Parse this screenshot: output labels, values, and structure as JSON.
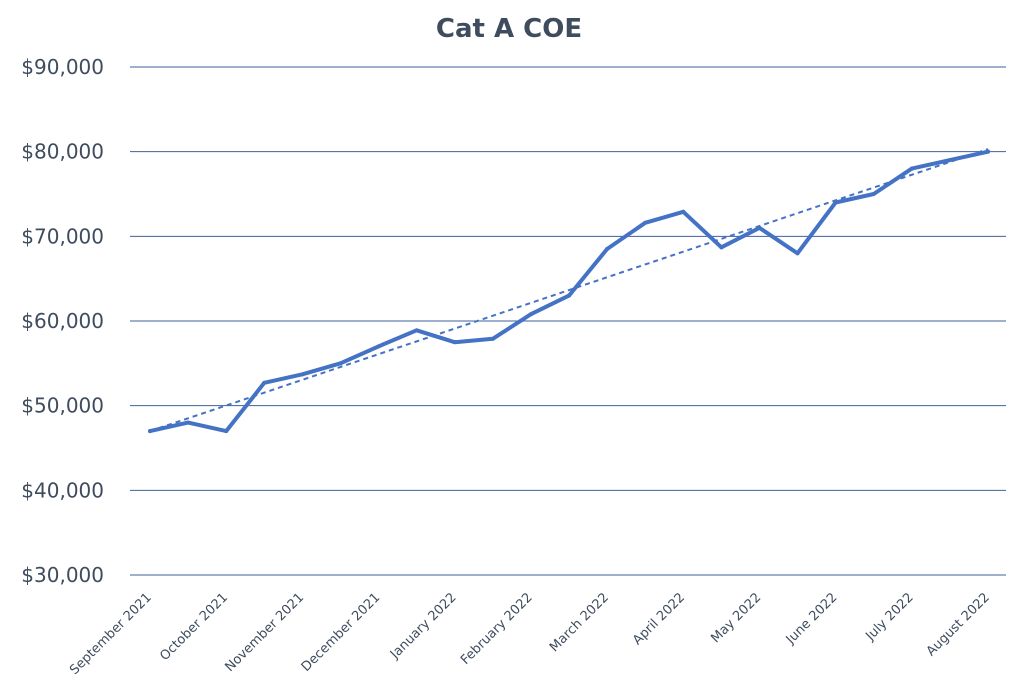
{
  "chart_data": {
    "type": "line",
    "title": "Cat A COE",
    "xlabel": "",
    "ylabel": "",
    "ylim": [
      30000,
      90000
    ],
    "y_ticks": [
      30000,
      40000,
      50000,
      60000,
      70000,
      80000,
      90000
    ],
    "y_tick_labels": [
      "$30,000",
      "$40,000",
      "$50,000",
      "$60,000",
      "$70,000",
      "$80,000",
      "$90,000"
    ],
    "x_tick_labels": [
      "September 2021",
      "October 2021",
      "November 2021",
      "December 2021",
      "January 2022",
      "February 2022",
      "March 2022",
      "April 2022",
      "May 2022",
      "June 2022",
      "July 2022",
      "August 2022"
    ],
    "grid": true,
    "legend": "none",
    "series": [
      {
        "values": [
          47000,
          48000,
          47000,
          52700,
          53700,
          55000,
          57000,
          58900,
          57500,
          57900,
          60800,
          63000,
          68500,
          71600,
          72900,
          68700,
          71000,
          68000,
          74000,
          75000,
          78000,
          79000,
          80000
        ],
        "color": "#4472c4",
        "style": "solid"
      },
      {
        "values": [
          47000,
          80300
        ],
        "color": "#4472c4",
        "style": "dashed",
        "trendline": true
      }
    ]
  }
}
